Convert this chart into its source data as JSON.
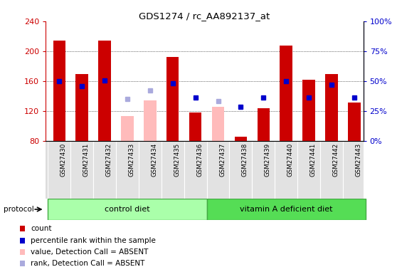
{
  "title": "GDS1274 / rc_AA892137_at",
  "samples": [
    "GSM27430",
    "GSM27431",
    "GSM27432",
    "GSM27433",
    "GSM27434",
    "GSM27435",
    "GSM27436",
    "GSM27437",
    "GSM27438",
    "GSM27439",
    "GSM27440",
    "GSM27441",
    "GSM27442",
    "GSM27443"
  ],
  "bar_values": [
    214,
    170,
    214,
    null,
    null,
    192,
    118,
    null,
    86,
    124,
    208,
    162,
    170,
    131
  ],
  "bar_absent_values": [
    null,
    null,
    null,
    113,
    134,
    null,
    null,
    126,
    null,
    null,
    null,
    null,
    null,
    null
  ],
  "rank_values": [
    160,
    153,
    161,
    null,
    null,
    157,
    138,
    null,
    126,
    138,
    160,
    138,
    155,
    138
  ],
  "rank_absent_values": [
    null,
    null,
    null,
    136,
    148,
    null,
    null,
    133,
    null,
    null,
    null,
    null,
    null,
    null
  ],
  "bar_color": "#CC0000",
  "bar_absent_color": "#FFBBBB",
  "rank_color": "#0000CC",
  "rank_absent_color": "#AAAADD",
  "ylim": [
    80,
    240
  ],
  "y2lim": [
    0,
    100
  ],
  "yticks": [
    80,
    120,
    160,
    200,
    240
  ],
  "y2ticks_vals": [
    0,
    25,
    50,
    75,
    100
  ],
  "y2ticks_labels": [
    "0%",
    "25%",
    "50%",
    "75%",
    "100%"
  ],
  "grid_lines": [
    120,
    160,
    200
  ],
  "ctrl_group_color": "#AAFFAA",
  "vita_group_color": "#55DD55",
  "group_border_color": "#44AA44",
  "groups": [
    {
      "label": "control diet",
      "x_start": -0.5,
      "x_end": 6.5,
      "color": "#AAFFAA"
    },
    {
      "label": "vitamin A deficient diet",
      "x_start": 6.5,
      "x_end": 13.5,
      "color": "#55DD55"
    }
  ],
  "protocol_label": "protocol",
  "legend_items": [
    {
      "label": "count",
      "color": "#CC0000"
    },
    {
      "label": "percentile rank within the sample",
      "color": "#0000CC"
    },
    {
      "label": "value, Detection Call = ABSENT",
      "color": "#FFBBBB"
    },
    {
      "label": "rank, Detection Call = ABSENT",
      "color": "#AAAADD"
    }
  ],
  "xlim": [
    -0.6,
    13.4
  ],
  "bar_width": 0.55,
  "label_bg": "#DDDDDD",
  "label_cell_color": "#E2E2E2"
}
